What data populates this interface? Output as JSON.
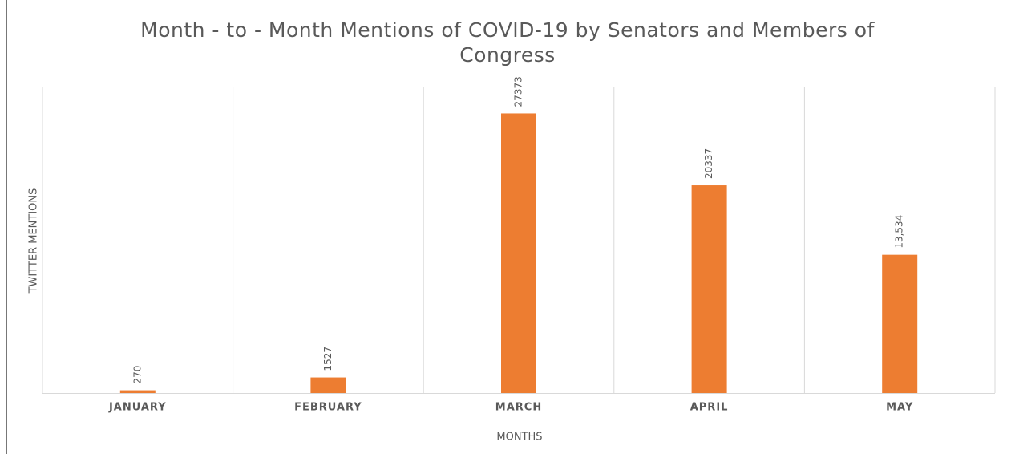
{
  "chart_data": {
    "type": "bar",
    "title": "Month - to - Month Mentions of COVID-19 by Senators and Members of Congress",
    "x_label": "MONTHS",
    "y_label": "TWITTER MENTIONS",
    "categories": [
      "JANUARY",
      "FEBRUARY",
      "MARCH",
      "APRIL",
      "MAY"
    ],
    "values": [
      270,
      1527,
      27373,
      20337,
      13534
    ],
    "value_labels": [
      "270",
      "1527",
      "27373",
      "20337",
      "13,534"
    ],
    "color": "#ed7d31",
    "ylim": [
      0,
      30000
    ],
    "grid": true
  }
}
